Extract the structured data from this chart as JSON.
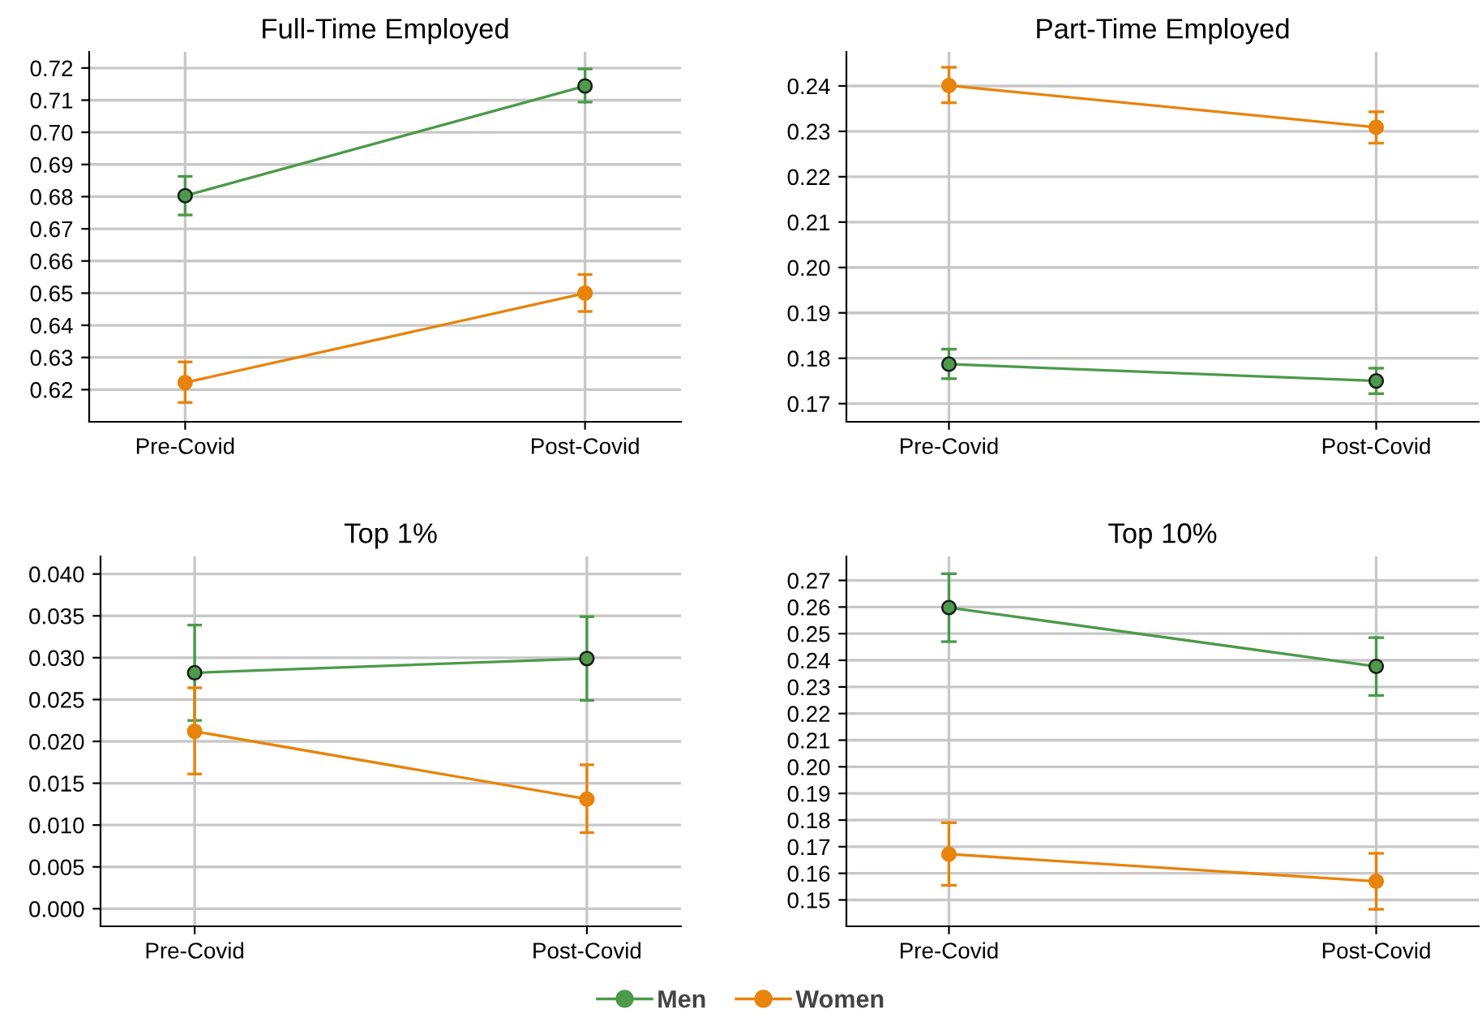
{
  "chart_data": [
    {
      "type": "line",
      "title": "Full-Time Employed",
      "categories": [
        "Pre-Covid",
        "Post-Covid"
      ],
      "ylim": [
        0.61,
        0.725
      ],
      "yticks": [
        {
          "value": 0.62,
          "label": "0.62"
        },
        {
          "value": 0.63,
          "label": "0.63"
        },
        {
          "value": 0.64,
          "label": "0.64"
        },
        {
          "value": 0.65,
          "label": "0.65"
        },
        {
          "value": 0.66,
          "label": "0.66"
        },
        {
          "value": 0.67,
          "label": "0.67"
        },
        {
          "value": 0.68,
          "label": "0.68"
        },
        {
          "value": 0.69,
          "label": "0.69"
        },
        {
          "value": 0.7,
          "label": "0.70"
        },
        {
          "value": 0.71,
          "label": "0.71"
        },
        {
          "value": 0.72,
          "label": "0.72"
        }
      ],
      "grid": true,
      "marker": "circle",
      "legend": "bottom",
      "series": [
        {
          "name": "Men",
          "color": "#4c9a4a",
          "values": [
            0.6803,
            0.7144
          ],
          "errors": [
            [
              0.6743,
              0.6863
            ],
            [
              0.7094,
              0.7197
            ]
          ]
        },
        {
          "name": "Women",
          "color": "#e8830c",
          "values": [
            0.6222,
            0.65
          ],
          "errors": [
            [
              0.616,
              0.6286
            ],
            [
              0.6443,
              0.6558
            ]
          ]
        }
      ]
    },
    {
      "type": "line",
      "title": "Part-Time Employed",
      "categories": [
        "Pre-Covid",
        "Post-Covid"
      ],
      "ylim": [
        0.166,
        0.2475
      ],
      "yticks": [
        {
          "value": 0.17,
          "label": "0.17"
        },
        {
          "value": 0.18,
          "label": "0.18"
        },
        {
          "value": 0.19,
          "label": "0.19"
        },
        {
          "value": 0.2,
          "label": "0.20"
        },
        {
          "value": 0.21,
          "label": "0.21"
        },
        {
          "value": 0.22,
          "label": "0.22"
        },
        {
          "value": 0.23,
          "label": "0.23"
        },
        {
          "value": 0.24,
          "label": "0.24"
        }
      ],
      "grid": true,
      "marker": "circle",
      "legend": "bottom",
      "series": [
        {
          "name": "Men",
          "color": "#4c9a4a",
          "values": [
            0.1787,
            0.175
          ],
          "errors": [
            [
              0.1755,
              0.182
            ],
            [
              0.1722,
              0.1778
            ]
          ]
        },
        {
          "name": "Women",
          "color": "#e8830c",
          "values": [
            0.2401,
            0.2309
          ],
          "errors": [
            [
              0.2363,
              0.2441
            ],
            [
              0.2274,
              0.2343
            ]
          ]
        }
      ]
    },
    {
      "type": "line",
      "title": "Top 1%",
      "categories": [
        "Pre-Covid",
        "Post-Covid"
      ],
      "ylim": [
        -0.0021,
        0.0421
      ],
      "yticks": [
        {
          "value": 0,
          "label": "0.000"
        },
        {
          "value": 0.005,
          "label": "0.005"
        },
        {
          "value": 0.01,
          "label": "0.010"
        },
        {
          "value": 0.015,
          "label": "0.015"
        },
        {
          "value": 0.02,
          "label": "0.020"
        },
        {
          "value": 0.025,
          "label": "0.025"
        },
        {
          "value": 0.03,
          "label": "0.030"
        },
        {
          "value": 0.035,
          "label": "0.035"
        },
        {
          "value": 0.04,
          "label": "0.040"
        }
      ],
      "grid": true,
      "marker": "circle",
      "legend": "bottom",
      "series": [
        {
          "name": "Men",
          "color": "#4c9a4a",
          "values": [
            0.0282,
            0.0299
          ],
          "errors": [
            [
              0.0225,
              0.0339
            ],
            [
              0.0249,
              0.0349
            ]
          ]
        },
        {
          "name": "Women",
          "color": "#e8830c",
          "values": [
            0.0212,
            0.0131
          ],
          "errors": [
            [
              0.0161,
              0.0264
            ],
            [
              0.0091,
              0.0172
            ]
          ]
        }
      ]
    },
    {
      "type": "line",
      "title": "Top 10%",
      "categories": [
        "Pre-Covid",
        "Post-Covid"
      ],
      "ylim": [
        0.1401,
        0.279
      ],
      "yticks": [
        {
          "value": 0.15,
          "label": "0.15"
        },
        {
          "value": 0.16,
          "label": "0.16"
        },
        {
          "value": 0.17,
          "label": "0.17"
        },
        {
          "value": 0.18,
          "label": "0.18"
        },
        {
          "value": 0.19,
          "label": "0.19"
        },
        {
          "value": 0.2,
          "label": "0.20"
        },
        {
          "value": 0.21,
          "label": "0.21"
        },
        {
          "value": 0.22,
          "label": "0.22"
        },
        {
          "value": 0.23,
          "label": "0.23"
        },
        {
          "value": 0.24,
          "label": "0.24"
        },
        {
          "value": 0.25,
          "label": "0.25"
        },
        {
          "value": 0.26,
          "label": "0.26"
        },
        {
          "value": 0.27,
          "label": "0.27"
        }
      ],
      "grid": true,
      "marker": "circle",
      "legend": "bottom",
      "series": [
        {
          "name": "Men",
          "color": "#4c9a4a",
          "values": [
            0.2598,
            0.2377
          ],
          "errors": [
            [
              0.247,
              0.2725
            ],
            [
              0.2268,
              0.2485
            ]
          ]
        },
        {
          "name": "Women",
          "color": "#e8830c",
          "values": [
            0.1672,
            0.157
          ],
          "errors": [
            [
              0.1555,
              0.179
            ],
            [
              0.1465,
              0.1675
            ]
          ]
        }
      ]
    }
  ]
}
